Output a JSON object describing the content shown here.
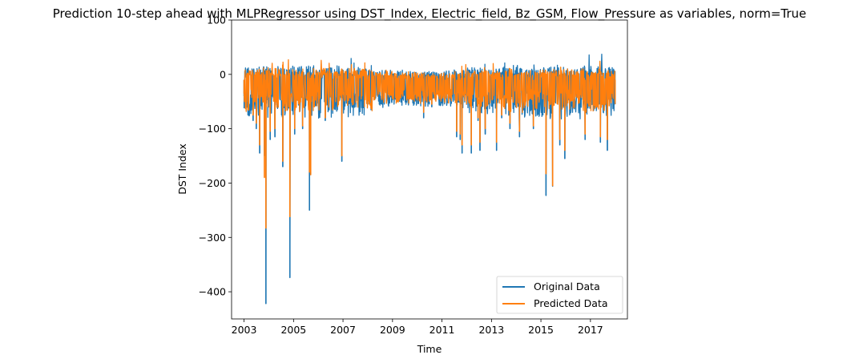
{
  "chart_data": {
    "type": "line",
    "title": "Prediction 10-step ahead with MLPRegressor using DST_Index, Electric_field, Bz_GSM, Flow_Pressure as variables, norm=True",
    "xlabel": "Time",
    "ylabel": "DST Index",
    "xlim": [
      "2002-07-01",
      "2018-07-01"
    ],
    "ylim": [
      -450,
      100
    ],
    "x_ticks": [
      "2003",
      "2005",
      "2007",
      "2009",
      "2011",
      "2013",
      "2015",
      "2017"
    ],
    "y_ticks": [
      "100",
      "0",
      "−100",
      "−200",
      "−300",
      "−400"
    ],
    "legend": {
      "placement": "lower-right"
    },
    "grid": false,
    "series": [
      {
        "name": "Original Data",
        "color": "#1f77b4",
        "x": [
          "2003-01-01",
          "2003-03-01",
          "2003-05-15",
          "2003-07-01",
          "2003-08-20",
          "2003-10-29",
          "2003-11-20",
          "2004-01-22",
          "2004-04-01",
          "2004-07-26",
          "2004-11-08",
          "2005-01-18",
          "2005-05-15",
          "2005-08-24",
          "2005-09-11",
          "2006-04-14",
          "2006-12-15",
          "2007-06-01",
          "2008-01-01",
          "2008-09-01",
          "2009-06-01",
          "2009-09-01",
          "2010-04-06",
          "2010-08-04",
          "2011-02-18",
          "2011-08-06",
          "2011-09-27",
          "2011-10-25",
          "2012-03-09",
          "2012-06-17",
          "2012-07-15",
          "2012-10-01",
          "2013-03-17",
          "2013-06-01",
          "2013-10-01",
          "2014-02-19",
          "2014-09-12",
          "2015-03-17",
          "2015-06-23",
          "2015-10-07",
          "2015-12-20",
          "2016-10-14",
          "2017-05-28",
          "2017-09-08",
          "2017-12-31"
        ],
        "values": [
          -40,
          -75,
          -85,
          -100,
          -145,
          -150,
          -422,
          -120,
          -115,
          -170,
          -374,
          -110,
          -100,
          -250,
          -120,
          -85,
          -160,
          -60,
          -55,
          -40,
          -45,
          -35,
          -80,
          -60,
          -45,
          -115,
          -120,
          -145,
          -145,
          -85,
          -140,
          -110,
          -140,
          -80,
          -100,
          -115,
          -100,
          -223,
          -206,
          -130,
          -155,
          -120,
          -125,
          -140,
          -55
        ]
      },
      {
        "name": "Predicted Data",
        "color": "#ff7f0e",
        "x": [
          "2003-01-01",
          "2003-03-01",
          "2003-05-15",
          "2003-07-01",
          "2003-08-20",
          "2003-10-29",
          "2003-11-20",
          "2004-01-22",
          "2004-04-01",
          "2004-07-26",
          "2004-11-08",
          "2005-01-18",
          "2005-05-15",
          "2005-08-24",
          "2005-09-11",
          "2006-04-14",
          "2006-12-15",
          "2007-06-01",
          "2008-01-01",
          "2008-09-01",
          "2009-06-01",
          "2009-09-01",
          "2010-04-06",
          "2010-08-04",
          "2011-02-18",
          "2011-08-06",
          "2011-09-27",
          "2011-10-25",
          "2012-03-09",
          "2012-06-17",
          "2012-07-15",
          "2012-10-01",
          "2013-03-17",
          "2013-06-01",
          "2013-10-01",
          "2014-02-19",
          "2014-09-12",
          "2015-03-17",
          "2015-06-23",
          "2015-10-07",
          "2015-12-20",
          "2016-10-14",
          "2017-05-28",
          "2017-09-08",
          "2017-12-31"
        ],
        "values": [
          -35,
          -65,
          -75,
          -90,
          -130,
          -190,
          -283,
          -105,
          -100,
          -160,
          -262,
          -100,
          -95,
          -180,
          -185,
          -80,
          -150,
          -55,
          -50,
          -38,
          -40,
          -32,
          -70,
          -55,
          -40,
          -105,
          -110,
          -130,
          -130,
          -80,
          -125,
          -100,
          -125,
          -75,
          -90,
          -105,
          -95,
          -183,
          -205,
          -120,
          -140,
          -110,
          -115,
          -120,
          -50
        ]
      }
    ]
  }
}
